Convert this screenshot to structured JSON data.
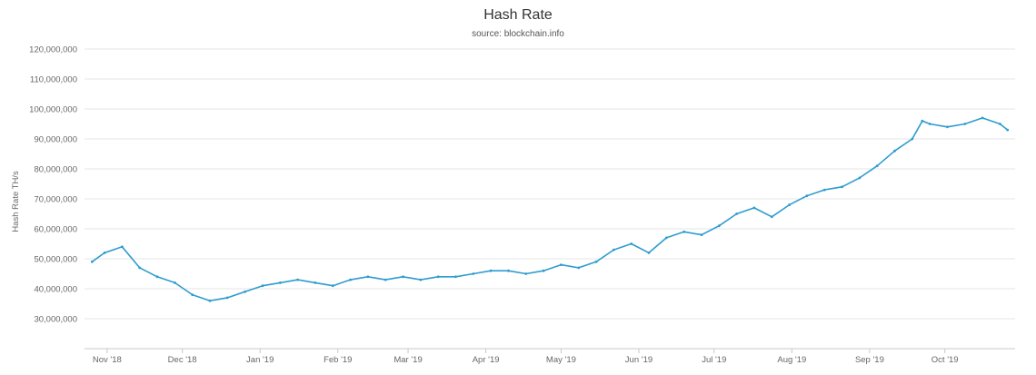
{
  "chart_data": {
    "type": "line",
    "title": "Hash Rate",
    "subtitle": "source: blockchain.info",
    "xlabel": "",
    "ylabel": "Hash Rate TH/s",
    "ylim": [
      20000000,
      120000000
    ],
    "yticks": [
      30000000,
      40000000,
      50000000,
      60000000,
      70000000,
      80000000,
      90000000,
      100000000,
      110000000,
      120000000
    ],
    "ytick_labels": [
      "30,000,000",
      "40,000,000",
      "50,000,000",
      "60,000,000",
      "70,000,000",
      "80,000,000",
      "90,000,000",
      "100,000,000",
      "110,000,000",
      "120,000,000"
    ],
    "xlim": [
      "2018-10-23",
      "2019-10-29"
    ],
    "xticks": [
      "2018-11-01",
      "2018-12-01",
      "2019-01-01",
      "2019-02-01",
      "2019-03-01",
      "2019-04-01",
      "2019-05-01",
      "2019-06-01",
      "2019-07-01",
      "2019-08-01",
      "2019-09-01",
      "2019-10-01"
    ],
    "xtick_labels": [
      "Nov '18",
      "Dec '18",
      "Jan '19",
      "Feb '19",
      "Mar '19",
      "Apr '19",
      "May '19",
      "Jun '19",
      "Jul '19",
      "Aug '19",
      "Sep '19",
      "Oct '19"
    ],
    "grid": true,
    "line_color": "#2e9ccf",
    "series": [
      {
        "x": [
          "2018-10-26",
          "2018-10-31",
          "2018-11-07",
          "2018-11-14",
          "2018-11-21",
          "2018-11-28",
          "2018-12-05",
          "2018-12-12",
          "2018-12-19",
          "2018-12-26",
          "2019-01-02",
          "2019-01-09",
          "2019-01-16",
          "2019-01-23",
          "2019-01-30",
          "2019-02-06",
          "2019-02-13",
          "2019-02-20",
          "2019-02-27",
          "2019-03-06",
          "2019-03-13",
          "2019-03-20",
          "2019-03-27",
          "2019-04-03",
          "2019-04-10",
          "2019-04-17",
          "2019-04-24",
          "2019-05-01",
          "2019-05-08",
          "2019-05-15",
          "2019-05-22",
          "2019-05-29",
          "2019-06-05",
          "2019-06-12",
          "2019-06-19",
          "2019-06-26",
          "2019-07-03",
          "2019-07-10",
          "2019-07-17",
          "2019-07-24",
          "2019-07-31",
          "2019-08-07",
          "2019-08-14",
          "2019-08-21",
          "2019-08-28",
          "2019-09-04",
          "2019-09-11",
          "2019-09-18",
          "2019-09-22",
          "2019-09-25",
          "2019-10-02",
          "2019-10-09",
          "2019-10-16",
          "2019-10-23",
          "2019-10-26"
        ],
        "values": [
          49000000,
          52000000,
          54000000,
          47000000,
          44000000,
          42000000,
          38000000,
          36000000,
          37000000,
          39000000,
          41000000,
          42000000,
          43000000,
          42000000,
          41000000,
          43000000,
          44000000,
          43000000,
          44000000,
          43000000,
          44000000,
          44000000,
          45000000,
          46000000,
          46000000,
          45000000,
          46000000,
          48000000,
          47000000,
          49000000,
          53000000,
          55000000,
          52000000,
          57000000,
          59000000,
          58000000,
          61000000,
          65000000,
          67000000,
          64000000,
          68000000,
          71000000,
          73000000,
          74000000,
          77000000,
          81000000,
          86000000,
          90000000,
          96000000,
          95000000,
          94000000,
          95000000,
          97000000,
          95000000,
          93000000
        ]
      }
    ]
  }
}
